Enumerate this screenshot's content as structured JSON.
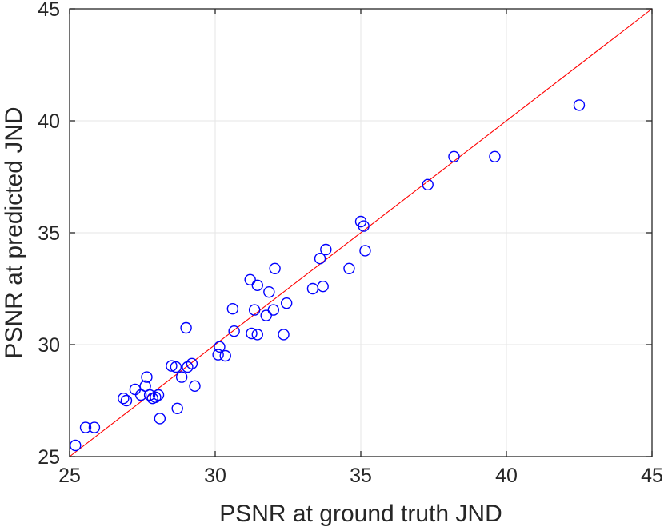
{
  "chart_data": {
    "type": "scatter",
    "title": "",
    "xlabel": "PSNR at ground truth JND",
    "ylabel": "PSNR at predicted JND",
    "xlim": [
      25,
      45
    ],
    "ylim": [
      25,
      45
    ],
    "xticks": [
      25,
      30,
      35,
      40,
      45
    ],
    "yticks": [
      25,
      30,
      35,
      40,
      45
    ],
    "xtick_labels": [
      "25",
      "30",
      "35",
      "40",
      "45"
    ],
    "ytick_labels": [
      "25",
      "30",
      "35",
      "40",
      "45"
    ],
    "grid": true,
    "reference_line": {
      "x": [
        25,
        45
      ],
      "y": [
        25,
        45
      ],
      "color": "#ff0000"
    },
    "marker_color": "#0000ff",
    "points": [
      [
        25.2,
        25.5
      ],
      [
        25.55,
        26.3
      ],
      [
        25.85,
        26.3
      ],
      [
        26.85,
        27.6
      ],
      [
        26.95,
        27.5
      ],
      [
        27.25,
        28.0
      ],
      [
        27.45,
        27.75
      ],
      [
        27.6,
        28.15
      ],
      [
        27.65,
        28.55
      ],
      [
        27.75,
        27.75
      ],
      [
        27.85,
        27.6
      ],
      [
        27.95,
        27.65
      ],
      [
        28.05,
        27.75
      ],
      [
        28.1,
        26.7
      ],
      [
        28.5,
        29.05
      ],
      [
        28.65,
        29.0
      ],
      [
        28.7,
        27.15
      ],
      [
        28.85,
        28.55
      ],
      [
        29.0,
        30.75
      ],
      [
        29.05,
        29.0
      ],
      [
        29.2,
        29.15
      ],
      [
        29.3,
        28.15
      ],
      [
        30.1,
        29.55
      ],
      [
        30.15,
        29.9
      ],
      [
        30.35,
        29.5
      ],
      [
        30.6,
        31.6
      ],
      [
        30.65,
        30.6
      ],
      [
        31.2,
        32.9
      ],
      [
        31.25,
        30.5
      ],
      [
        31.35,
        31.55
      ],
      [
        31.45,
        30.45
      ],
      [
        31.45,
        32.65
      ],
      [
        31.75,
        31.3
      ],
      [
        31.85,
        32.35
      ],
      [
        32.0,
        31.55
      ],
      [
        32.05,
        33.4
      ],
      [
        32.35,
        30.45
      ],
      [
        32.45,
        31.85
      ],
      [
        33.35,
        32.5
      ],
      [
        33.6,
        33.85
      ],
      [
        33.7,
        32.6
      ],
      [
        33.8,
        34.25
      ],
      [
        34.6,
        33.4
      ],
      [
        35.0,
        35.5
      ],
      [
        35.1,
        35.3
      ],
      [
        35.15,
        34.2
      ],
      [
        37.3,
        37.15
      ],
      [
        38.2,
        38.4
      ],
      [
        39.6,
        38.4
      ],
      [
        42.5,
        40.7
      ]
    ]
  }
}
